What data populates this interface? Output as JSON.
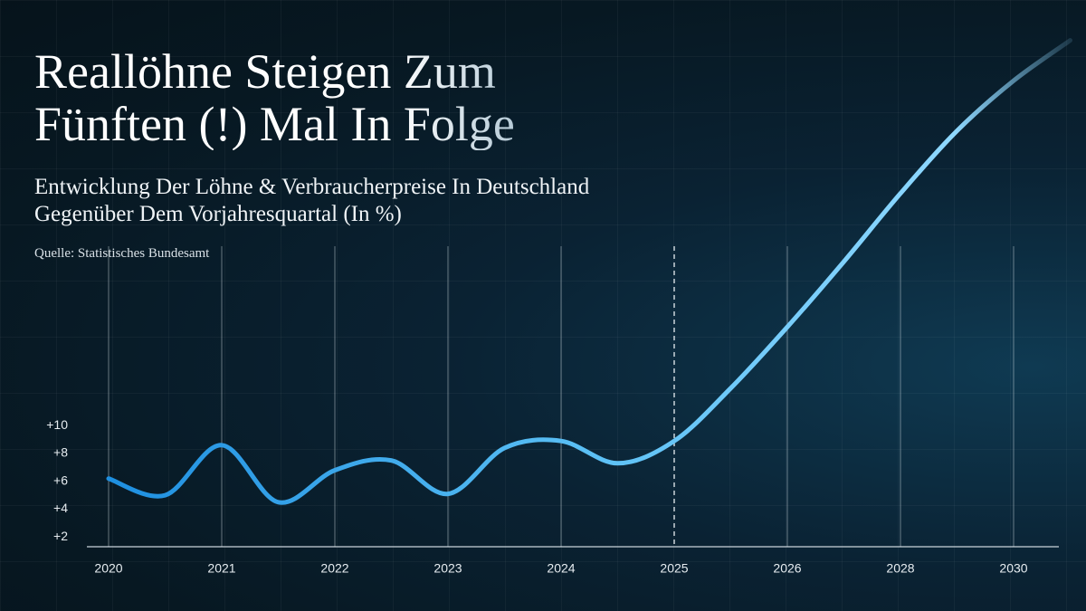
{
  "chart_data": {
    "type": "line",
    "title": "Reallöhne Steigen Zum Fünften (!) Mal In Folge",
    "subtitle": "Entwicklung Der Löhne & Verbraucherpreise In Deutschland Gegenüber Dem Vorjahresquartal (In %)",
    "source": "Quelle: Statistisches Bundesamt",
    "categories": [
      "2020",
      null,
      "2021",
      null,
      "2022",
      null,
      "2023",
      null,
      "2024",
      null,
      "2025",
      null,
      "2026",
      null,
      "2028",
      null,
      "2030",
      null
    ],
    "series": [
      {
        "name": "Reallöhne",
        "color": "#5bc0f5",
        "values": [
          6.2,
          5.0,
          8.6,
          4.5,
          6.8,
          7.5,
          5.1,
          8.4,
          8.9,
          7.3,
          8.9,
          12.7,
          17.1,
          21.8,
          26.7,
          31.2,
          34.8,
          37.7
        ]
      }
    ],
    "ylim": [
      1.3,
      38
    ],
    "yticks": [
      {
        "value": 2,
        "label": "+2"
      },
      {
        "value": 4,
        "label": "+4"
      },
      {
        "value": 6,
        "label": "+6"
      },
      {
        "value": 8,
        "label": "+8"
      },
      {
        "value": 10,
        "label": "+10"
      }
    ],
    "grid": true,
    "dashed_gridline": "2025"
  }
}
